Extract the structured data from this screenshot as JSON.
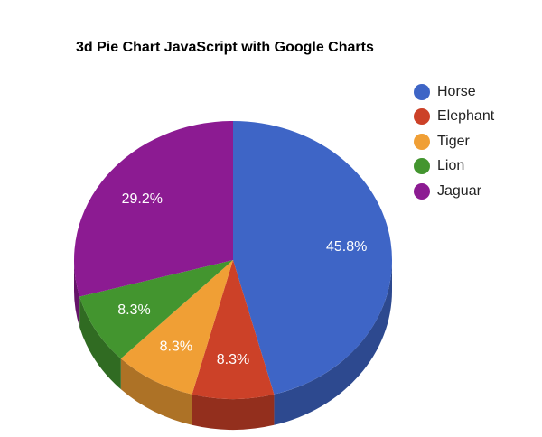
{
  "chart_data": {
    "type": "pie",
    "is3D": true,
    "title": "3d Pie Chart JavaScript with Google Charts",
    "legend_position": "right",
    "categories": [
      "Horse",
      "Elephant",
      "Tiger",
      "Lion",
      "Jaguar"
    ],
    "values": [
      45.8,
      8.3,
      8.3,
      8.3,
      29.2
    ],
    "labels": [
      "45.8%",
      "8.3%",
      "8.3%",
      "8.3%",
      "29.2%"
    ],
    "colors": [
      "#3e65c6",
      "#cc4128",
      "#f09f35",
      "#43952f",
      "#8c1b92"
    ]
  }
}
